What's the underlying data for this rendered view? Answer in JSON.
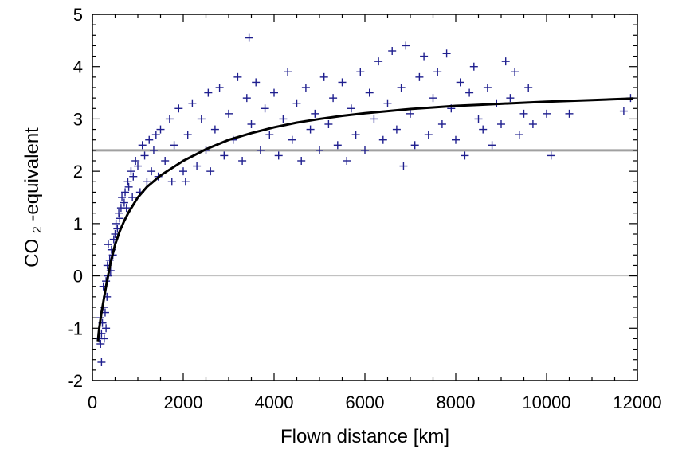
{
  "chart_data": {
    "type": "scatter",
    "xlabel": "Flown distance [km]",
    "ylabel": {
      "prefix": "CO",
      "subscript": "2",
      "suffix": "-equivalent"
    },
    "xlim": [
      0,
      12000
    ],
    "ylim": [
      -2,
      5
    ],
    "xticks": [
      0,
      2000,
      4000,
      6000,
      8000,
      10000,
      12000
    ],
    "yticks": [
      -2,
      -1,
      0,
      1,
      2,
      3,
      4,
      5
    ],
    "grid": false,
    "legend": "none",
    "marker": "+",
    "colors": {
      "points": "#1f1f8f",
      "fit_line": "#000000",
      "reference_line": "#a0a0a0",
      "zero_line": "#b8b8b8",
      "axes": "#000000"
    },
    "reference_line_y": 2.4,
    "zero_line_y": 0,
    "fit_curve": [
      [
        120,
        -1.25
      ],
      [
        150,
        -1.0
      ],
      [
        200,
        -0.7
      ],
      [
        250,
        -0.45
      ],
      [
        300,
        -0.2
      ],
      [
        400,
        0.25
      ],
      [
        500,
        0.6
      ],
      [
        600,
        0.85
      ],
      [
        700,
        1.05
      ],
      [
        800,
        1.22
      ],
      [
        1000,
        1.5
      ],
      [
        1200,
        1.7
      ],
      [
        1500,
        1.92
      ],
      [
        2000,
        2.2
      ],
      [
        2500,
        2.42
      ],
      [
        3000,
        2.6
      ],
      [
        3500,
        2.73
      ],
      [
        4000,
        2.84
      ],
      [
        4500,
        2.93
      ],
      [
        5000,
        3.0
      ],
      [
        5500,
        3.06
      ],
      [
        6000,
        3.11
      ],
      [
        6500,
        3.15
      ],
      [
        7000,
        3.19
      ],
      [
        7500,
        3.22
      ],
      [
        8000,
        3.25
      ],
      [
        8500,
        3.27
      ],
      [
        9000,
        3.29
      ],
      [
        10000,
        3.33
      ],
      [
        11000,
        3.36
      ],
      [
        11900,
        3.39
      ]
    ],
    "points": [
      [
        150,
        -1.2
      ],
      [
        180,
        -1.3
      ],
      [
        200,
        -1.1
      ],
      [
        220,
        -0.9
      ],
      [
        170,
        -0.8
      ],
      [
        250,
        -0.6
      ],
      [
        200,
        -1.65
      ],
      [
        260,
        -1.2
      ],
      [
        300,
        -1.0
      ],
      [
        280,
        -0.7
      ],
      [
        320,
        -0.4
      ],
      [
        240,
        -0.2
      ],
      [
        300,
        -0.1
      ],
      [
        350,
        0.0
      ],
      [
        330,
        0.2
      ],
      [
        380,
        0.3
      ],
      [
        400,
        0.1
      ],
      [
        420,
        0.5
      ],
      [
        450,
        0.4
      ],
      [
        470,
        0.7
      ],
      [
        350,
        0.6
      ],
      [
        500,
        0.8
      ],
      [
        520,
        1.0
      ],
      [
        550,
        0.9
      ],
      [
        580,
        1.2
      ],
      [
        600,
        1.1
      ],
      [
        630,
        1.3
      ],
      [
        650,
        1.5
      ],
      [
        700,
        1.4
      ],
      [
        720,
        1.6
      ],
      [
        750,
        1.3
      ],
      [
        780,
        1.8
      ],
      [
        800,
        1.7
      ],
      [
        850,
        2.0
      ],
      [
        880,
        1.5
      ],
      [
        900,
        1.9
      ],
      [
        950,
        2.2
      ],
      [
        1000,
        2.1
      ],
      [
        1050,
        1.6
      ],
      [
        1100,
        2.5
      ],
      [
        1150,
        2.3
      ],
      [
        1200,
        1.8
      ],
      [
        1250,
        2.6
      ],
      [
        1300,
        2.0
      ],
      [
        1350,
        2.4
      ],
      [
        1400,
        2.7
      ],
      [
        1450,
        1.9
      ],
      [
        1500,
        2.8
      ],
      [
        1600,
        2.2
      ],
      [
        1700,
        3.0
      ],
      [
        1750,
        1.8
      ],
      [
        1800,
        2.5
      ],
      [
        1900,
        3.2
      ],
      [
        2000,
        2.0
      ],
      [
        2050,
        1.8
      ],
      [
        2100,
        2.7
      ],
      [
        2200,
        3.3
      ],
      [
        2300,
        2.1
      ],
      [
        2400,
        3.0
      ],
      [
        2500,
        2.4
      ],
      [
        2550,
        3.5
      ],
      [
        2600,
        2.0
      ],
      [
        2700,
        2.8
      ],
      [
        2800,
        3.6
      ],
      [
        2900,
        2.3
      ],
      [
        3000,
        3.1
      ],
      [
        3100,
        2.6
      ],
      [
        3200,
        3.8
      ],
      [
        3300,
        2.2
      ],
      [
        3400,
        3.4
      ],
      [
        3450,
        4.55
      ],
      [
        3500,
        2.9
      ],
      [
        3600,
        3.7
      ],
      [
        3700,
        2.4
      ],
      [
        3800,
        3.2
      ],
      [
        3900,
        2.7
      ],
      [
        4000,
        3.5
      ],
      [
        4100,
        2.3
      ],
      [
        4200,
        3.0
      ],
      [
        4300,
        3.9
      ],
      [
        4400,
        2.6
      ],
      [
        4500,
        3.3
      ],
      [
        4600,
        2.2
      ],
      [
        4700,
        3.6
      ],
      [
        4800,
        2.8
      ],
      [
        4900,
        3.1
      ],
      [
        5000,
        2.4
      ],
      [
        5100,
        3.8
      ],
      [
        5200,
        2.9
      ],
      [
        5300,
        3.4
      ],
      [
        5400,
        2.5
      ],
      [
        5500,
        3.7
      ],
      [
        5600,
        2.2
      ],
      [
        5700,
        3.2
      ],
      [
        5800,
        2.7
      ],
      [
        5900,
        3.9
      ],
      [
        6000,
        2.4
      ],
      [
        6100,
        3.5
      ],
      [
        6200,
        3.0
      ],
      [
        6300,
        4.1
      ],
      [
        6400,
        2.6
      ],
      [
        6500,
        3.3
      ],
      [
        6600,
        4.3
      ],
      [
        6700,
        2.8
      ],
      [
        6800,
        3.6
      ],
      [
        6850,
        2.1
      ],
      [
        6900,
        4.4
      ],
      [
        7000,
        3.1
      ],
      [
        7100,
        2.5
      ],
      [
        7200,
        3.8
      ],
      [
        7300,
        4.2
      ],
      [
        7400,
        2.7
      ],
      [
        7500,
        3.4
      ],
      [
        7600,
        3.9
      ],
      [
        7700,
        2.9
      ],
      [
        7800,
        4.25
      ],
      [
        7900,
        3.2
      ],
      [
        8000,
        2.6
      ],
      [
        8100,
        3.7
      ],
      [
        8200,
        2.3
      ],
      [
        8300,
        3.5
      ],
      [
        8400,
        4.0
      ],
      [
        8500,
        3.0
      ],
      [
        8600,
        2.8
      ],
      [
        8700,
        3.6
      ],
      [
        8800,
        2.5
      ],
      [
        8900,
        3.3
      ],
      [
        9000,
        2.9
      ],
      [
        9100,
        4.1
      ],
      [
        9200,
        3.4
      ],
      [
        9300,
        3.9
      ],
      [
        9400,
        2.7
      ],
      [
        9500,
        3.1
      ],
      [
        9600,
        3.6
      ],
      [
        9700,
        2.9
      ],
      [
        10000,
        3.1
      ],
      [
        10100,
        2.3
      ],
      [
        10500,
        3.1
      ],
      [
        11700,
        3.15
      ],
      [
        11850,
        3.4
      ]
    ]
  }
}
